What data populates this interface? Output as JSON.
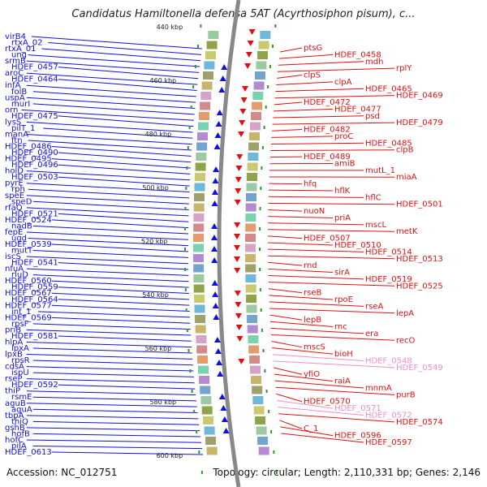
{
  "title": "Candidatus Hamiltonella defensa 5AT (Acyrthosiphon pisum), c...",
  "accession": "Accession: NC_012751",
  "summary": "Topology: circular; Length: 2,110,331 bp; Genes: 2,146",
  "colors": {
    "forward": "#1010e0",
    "reverse": "#e01010",
    "rna": "#f08ccd",
    "backbone": "#888888",
    "tick": "#2a9a2a"
  },
  "scale_ticks": [
    "440 kbp",
    "460 kbp",
    "480 kbp",
    "500 kbp",
    "520 kbp",
    "540 kbp",
    "560 kbp",
    "580 kbp",
    "600 kbp"
  ],
  "left_labels": [
    "virB4",
    "rtxA_02",
    "rtxA_01",
    "ung",
    "srmB",
    "HDEF_0457",
    "aroC",
    "HDEF_0464",
    "infA",
    "folB",
    "uspA",
    "murI",
    "orn",
    "HDEF_0475",
    "lysS",
    "pilT_1",
    "manA",
    "ftn",
    "HDEF_0486",
    "HDEF_0490",
    "HDEF_0495",
    "HDEF_0496",
    "holD",
    "HDEF_0503",
    "pyrE",
    "rph",
    "speE",
    "speD",
    "rfaQ",
    "HDEF_0521",
    "HDEF_0524",
    "nadB",
    "fepE",
    "ugd",
    "HDEF_0539",
    "mutT",
    "iscS",
    "HDEF_0541",
    "nfuA",
    "rluD",
    "HDEF_0560",
    "HDEF_0559",
    "HDEF_0567",
    "HDEF_0564",
    "HDEF_0577",
    "int_1",
    "HDEF_0569",
    "rpsF",
    "priB",
    "HDEF_0581",
    "hlpA",
    "lpxA",
    "lpxB",
    "rpsR",
    "cdsA",
    "ispU",
    "rseP",
    "HDEF_0592",
    "thiP",
    "rsmE",
    "aguB",
    "aguA",
    "tbpA",
    "thiQ",
    "gshB",
    "hofB",
    "hofC",
    "pilA",
    "HDEF_0613"
  ],
  "right_labels": [
    "ptsG",
    "HDEF_0458",
    "mdh",
    "rplY",
    "clpS",
    "clpA",
    "HDEF_0465",
    "HDEF_0469",
    "HDEF_0472",
    "HDEF_0477",
    "psd",
    "HDEF_0479",
    "HDEF_0482",
    "proC",
    "HDEF_0485",
    "clpB",
    "HDEF_0489",
    "amiB",
    "mutL_1",
    "miaA",
    "hfq",
    "hflK",
    "hflC",
    "HDEF_0501",
    "nuoN",
    "priA",
    "mscL",
    "metK",
    "HDEF_0507",
    "HDEF_0510",
    "HDEF_0514",
    "HDEF_0513",
    "rnd",
    "sirA",
    "HDEF_0519",
    "HDEF_0525",
    "rseB",
    "rpoE",
    "rseA",
    "lepA",
    "lepB",
    "rnc",
    "era",
    "recO",
    "mscS",
    "bioH",
    "HDEF_0548",
    "HDEF_0549",
    "yfiO",
    "raiA",
    "mnmA",
    "purB",
    "HDEF_0570",
    "HDEF_0571",
    "HDEF_0572",
    "HDEF_0574",
    "C_1",
    "HDEF_0596",
    "HDEF_0597"
  ]
}
